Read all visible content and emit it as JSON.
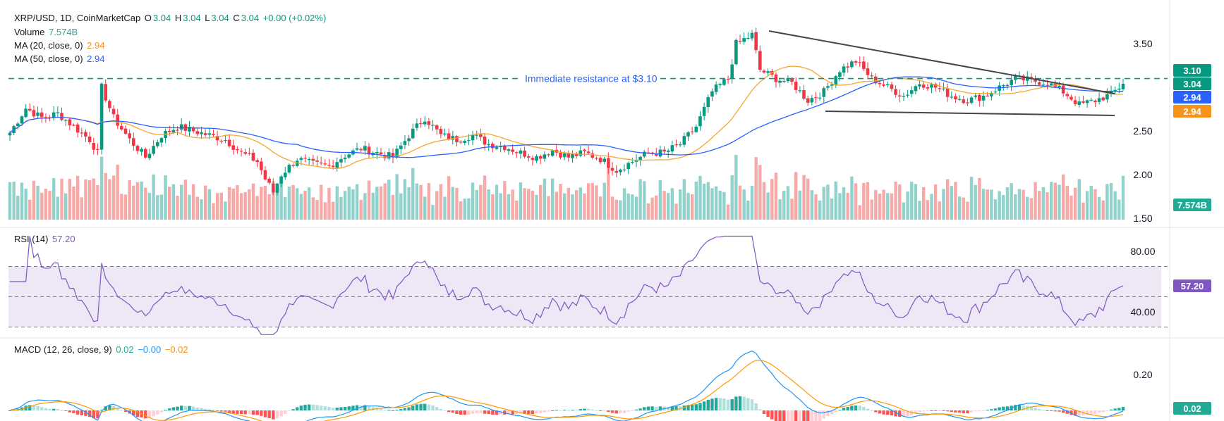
{
  "header": {
    "symbol": "XRP/USD, 1D, CoinMarketCap",
    "o_label": "O",
    "o_value": "3.04",
    "h_label": "H",
    "h_value": "3.04",
    "l_label": "L",
    "l_value": "3.04",
    "c_label": "C",
    "c_value": "3.04",
    "change": "+0.00 (+0.02%)"
  },
  "legend": {
    "volume_label": "Volume",
    "volume_value": "7.574B",
    "ma20_label": "MA (20, close, 0)",
    "ma20_value": "2.94",
    "ma50_label": "MA (50, close, 0)",
    "ma50_value": "2.94",
    "rsi_label": "RSI (14)",
    "rsi_value": "57.20",
    "macd_label": "MACD (12, 26, close, 9)",
    "macd_value": "0.02",
    "macd_signal": "−0.00",
    "macd_hist": "−0.02"
  },
  "annotation": "Immediate resistance at $3.10",
  "price_badges": {
    "resistance": "3.10",
    "last": "3.04",
    "ma50": "2.94",
    "ma20": "2.94",
    "volume": "7.574B",
    "rsi": "57.20",
    "macd": "0.02"
  },
  "colors": {
    "up": "#089981",
    "down": "#f23645",
    "vol_up": "#92d2cc",
    "vol_down": "#f7a9a7",
    "ma20": "#f7a531",
    "ma50": "#2962ff",
    "rsi": "#7e57c2",
    "rsi_band": "#ede7f6",
    "macd": "#2196f3",
    "signal": "#ff9800",
    "resistance": "#089981",
    "trendline": "#434651"
  },
  "chart_data": [
    {
      "type": "candlestick",
      "title": "XRP/USD, 1D, CoinMarketCap",
      "y_ticks": [
        3.5,
        2.5,
        2.0,
        1.5
      ],
      "y_tick_labels": [
        "3.50",
        "2.50",
        "2.00",
        "1.50"
      ],
      "ylim": [
        1.44,
        3.82
      ],
      "resistance_level": 3.1,
      "anchors": [
        {
          "i": 0,
          "c": 2.48
        },
        {
          "i": 4,
          "c": 2.76
        },
        {
          "i": 8,
          "c": 2.65
        },
        {
          "i": 12,
          "c": 2.7
        },
        {
          "i": 16,
          "c": 2.55
        },
        {
          "i": 20,
          "c": 2.4
        },
        {
          "i": 22,
          "c": 2.25
        },
        {
          "i": 23,
          "c": 3.0
        },
        {
          "i": 26,
          "c": 2.65
        },
        {
          "i": 30,
          "c": 2.4
        },
        {
          "i": 34,
          "c": 2.2
        },
        {
          "i": 38,
          "c": 2.45
        },
        {
          "i": 42,
          "c": 2.55
        },
        {
          "i": 46,
          "c": 2.5
        },
        {
          "i": 50,
          "c": 2.45
        },
        {
          "i": 54,
          "c": 2.4
        },
        {
          "i": 58,
          "c": 2.25
        },
        {
          "i": 62,
          "c": 2.15
        },
        {
          "i": 64,
          "c": 1.95
        },
        {
          "i": 66,
          "c": 1.8
        },
        {
          "i": 68,
          "c": 2.0
        },
        {
          "i": 72,
          "c": 2.18
        },
        {
          "i": 76,
          "c": 2.12
        },
        {
          "i": 80,
          "c": 2.1
        },
        {
          "i": 84,
          "c": 2.22
        },
        {
          "i": 88,
          "c": 2.3
        },
        {
          "i": 92,
          "c": 2.25
        },
        {
          "i": 96,
          "c": 2.2
        },
        {
          "i": 100,
          "c": 2.45
        },
        {
          "i": 104,
          "c": 2.65
        },
        {
          "i": 108,
          "c": 2.45
        },
        {
          "i": 112,
          "c": 2.4
        },
        {
          "i": 116,
          "c": 2.45
        },
        {
          "i": 120,
          "c": 2.35
        },
        {
          "i": 124,
          "c": 2.32
        },
        {
          "i": 128,
          "c": 2.25
        },
        {
          "i": 132,
          "c": 2.2
        },
        {
          "i": 136,
          "c": 2.28
        },
        {
          "i": 140,
          "c": 2.2
        },
        {
          "i": 144,
          "c": 2.25
        },
        {
          "i": 148,
          "c": 2.18
        },
        {
          "i": 152,
          "c": 2.05
        },
        {
          "i": 156,
          "c": 2.15
        },
        {
          "i": 160,
          "c": 2.25
        },
        {
          "i": 164,
          "c": 2.25
        },
        {
          "i": 168,
          "c": 2.35
        },
        {
          "i": 172,
          "c": 2.55
        },
        {
          "i": 176,
          "c": 2.95
        },
        {
          "i": 180,
          "c": 3.1
        },
        {
          "i": 182,
          "c": 3.5
        },
        {
          "i": 184,
          "c": 3.55
        },
        {
          "i": 186,
          "c": 3.6
        },
        {
          "i": 188,
          "c": 3.2
        },
        {
          "i": 192,
          "c": 3.1
        },
        {
          "i": 196,
          "c": 3.05
        },
        {
          "i": 200,
          "c": 2.85
        },
        {
          "i": 204,
          "c": 2.95
        },
        {
          "i": 208,
          "c": 3.2
        },
        {
          "i": 212,
          "c": 3.3
        },
        {
          "i": 216,
          "c": 3.1
        },
        {
          "i": 220,
          "c": 3.0
        },
        {
          "i": 224,
          "c": 2.9
        },
        {
          "i": 228,
          "c": 3.05
        },
        {
          "i": 232,
          "c": 3.0
        },
        {
          "i": 236,
          "c": 2.9
        },
        {
          "i": 240,
          "c": 2.85
        },
        {
          "i": 244,
          "c": 2.9
        },
        {
          "i": 248,
          "c": 3.0
        },
        {
          "i": 252,
          "c": 3.1
        },
        {
          "i": 256,
          "c": 3.08
        },
        {
          "i": 260,
          "c": 3.05
        },
        {
          "i": 264,
          "c": 2.95
        },
        {
          "i": 268,
          "c": 2.8
        },
        {
          "i": 272,
          "c": 2.85
        },
        {
          "i": 276,
          "c": 2.92
        },
        {
          "i": 279,
          "c": 3.04
        }
      ],
      "moving_averages": [
        "MA (20, close, 0)",
        "MA (50, close, 0)"
      ]
    },
    {
      "type": "bar",
      "title": "Volume",
      "last_value": "7.574B"
    },
    {
      "type": "line",
      "title": "RSI (14)",
      "y_ticks": [
        80,
        40
      ],
      "y_tick_labels": [
        "80.00",
        "40.00"
      ],
      "band": [
        30,
        70
      ],
      "midline": 50,
      "ylim": [
        20,
        90
      ],
      "last_value": 57.2
    },
    {
      "type": "line",
      "title": "MACD (12, 26, close, 9)",
      "y_ticks": [
        0.2
      ],
      "y_tick_labels": [
        "0.20"
      ],
      "series": [
        {
          "name": "MACD",
          "values": []
        },
        {
          "name": "Signal",
          "values": []
        },
        {
          "name": "Histogram",
          "values": []
        }
      ],
      "ylim": [
        -0.03,
        0.33
      ],
      "last_value": 0.02
    }
  ]
}
